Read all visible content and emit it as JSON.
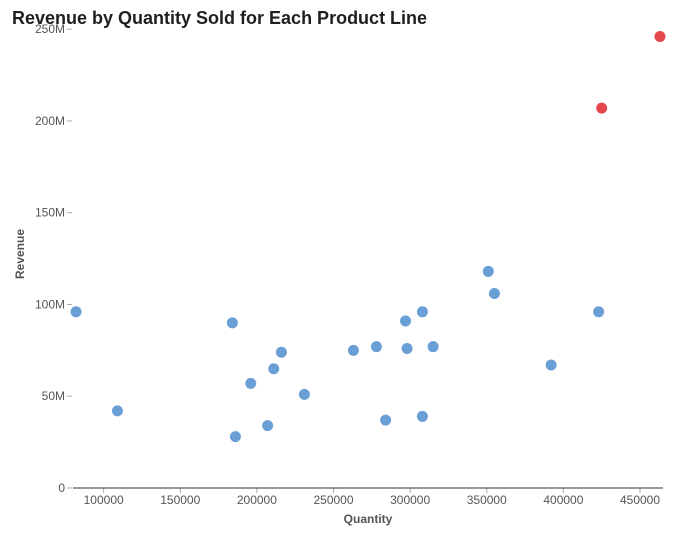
{
  "chart_data": {
    "type": "scatter",
    "title": "Revenue by Quantity Sold for Each Product Line",
    "xlabel": "Quantity",
    "ylabel": "Revenue",
    "xlim": [
      80000,
      465000
    ],
    "ylim": [
      0,
      255000000
    ],
    "xticks": [
      100000,
      150000,
      200000,
      250000,
      300000,
      350000,
      400000,
      450000
    ],
    "xtick_labels": [
      "100000",
      "150000",
      "200000",
      "250000",
      "300000",
      "350000",
      "400000",
      "450000"
    ],
    "yticks": [
      0,
      50000000,
      100000000,
      150000000,
      200000000,
      250000000
    ],
    "ytick_labels": [
      "0",
      "50M",
      "100M",
      "150M",
      "200M",
      "250M"
    ],
    "grid": false,
    "colors": {
      "normal": "#6a9fd6",
      "highlight": "#e5474d",
      "axis": "#333333",
      "tick": "#aaaaaa"
    },
    "points": [
      {
        "x": 82000,
        "y": 96000000,
        "highlight": false
      },
      {
        "x": 109000,
        "y": 42000000,
        "highlight": false
      },
      {
        "x": 184000,
        "y": 90000000,
        "highlight": false
      },
      {
        "x": 186000,
        "y": 28000000,
        "highlight": false
      },
      {
        "x": 196000,
        "y": 57000000,
        "highlight": false
      },
      {
        "x": 207000,
        "y": 34000000,
        "highlight": false
      },
      {
        "x": 211000,
        "y": 65000000,
        "highlight": false
      },
      {
        "x": 216000,
        "y": 74000000,
        "highlight": false
      },
      {
        "x": 231000,
        "y": 51000000,
        "highlight": false
      },
      {
        "x": 263000,
        "y": 75000000,
        "highlight": false
      },
      {
        "x": 278000,
        "y": 77000000,
        "highlight": false
      },
      {
        "x": 284000,
        "y": 37000000,
        "highlight": false
      },
      {
        "x": 297000,
        "y": 91000000,
        "highlight": false
      },
      {
        "x": 298000,
        "y": 76000000,
        "highlight": false
      },
      {
        "x": 308000,
        "y": 96000000,
        "highlight": false
      },
      {
        "x": 308000,
        "y": 39000000,
        "highlight": false
      },
      {
        "x": 315000,
        "y": 77000000,
        "highlight": false
      },
      {
        "x": 351000,
        "y": 118000000,
        "highlight": false
      },
      {
        "x": 355000,
        "y": 106000000,
        "highlight": false
      },
      {
        "x": 392000,
        "y": 67000000,
        "highlight": false
      },
      {
        "x": 423000,
        "y": 96000000,
        "highlight": false
      },
      {
        "x": 425000,
        "y": 207000000,
        "highlight": true
      },
      {
        "x": 463000,
        "y": 246000000,
        "highlight": true
      }
    ]
  }
}
